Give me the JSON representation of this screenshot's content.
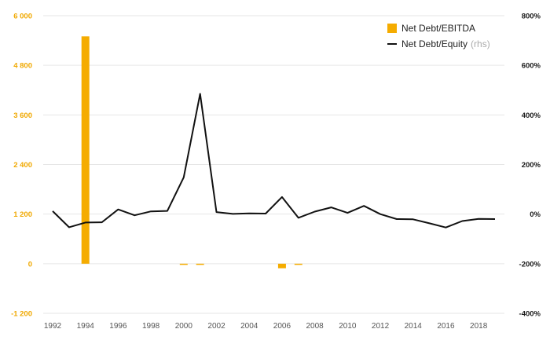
{
  "chart_data": {
    "type": "bar+line",
    "x": [
      1992,
      1993,
      1994,
      1995,
      1996,
      1997,
      1998,
      1999,
      2000,
      2001,
      2002,
      2003,
      2004,
      2005,
      2006,
      2007,
      2008,
      2009,
      2010,
      2011,
      2012,
      2013,
      2014,
      2015,
      2016,
      2017,
      2018,
      2019
    ],
    "x_ticks": [
      "1992",
      "1994",
      "1996",
      "1998",
      "2000",
      "2002",
      "2004",
      "2006",
      "2008",
      "2010",
      "2012",
      "2014",
      "2016",
      "2018"
    ],
    "left_axis": {
      "ylim": [
        -1200,
        6000
      ],
      "ticks": [
        -1200,
        0,
        1200,
        2400,
        3600,
        4800,
        6000
      ],
      "tick_labels": [
        "-1 200",
        "0",
        "1 200",
        "2 400",
        "3 600",
        "4 800",
        "6 000"
      ],
      "color": "#f0a800"
    },
    "right_axis": {
      "ylim": [
        -400,
        800
      ],
      "ticks": [
        -400,
        -200,
        0,
        200,
        400,
        600,
        800
      ],
      "tick_labels": [
        "-400%",
        "-200%",
        "0%",
        "200%",
        "400%",
        "600%",
        "800%"
      ]
    },
    "series": [
      {
        "name": "Net Debt/EBITDA",
        "type": "bar",
        "axis": "left",
        "color": "#f5ac00",
        "values": [
          0,
          0,
          5500,
          0,
          0,
          0,
          0,
          0,
          -20,
          -20,
          0,
          0,
          0,
          0,
          -110,
          -15,
          0,
          0,
          0,
          0,
          0,
          0,
          0,
          0,
          0,
          0,
          0,
          0
        ]
      },
      {
        "name": "Net Debt/Equity",
        "name_note": "(rhs)",
        "type": "line",
        "axis": "right",
        "color": "#111111",
        "values": [
          12,
          -53,
          -34,
          -33,
          19,
          -5,
          11,
          13,
          148,
          485,
          8,
          1,
          3,
          2,
          69,
          -15,
          10,
          27,
          5,
          33,
          0,
          -20,
          -21,
          -37,
          -54,
          -28,
          -19,
          -20
        ]
      }
    ],
    "grid": true,
    "legend": "top-right"
  }
}
